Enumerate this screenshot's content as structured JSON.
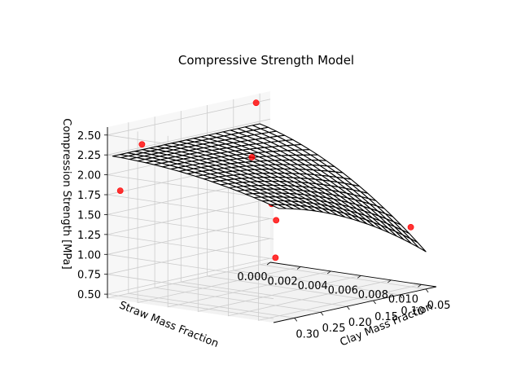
{
  "chart_data": {
    "type": "surface3d",
    "title": "Compressive Strength Model",
    "xlabel": "Clay Mass Fraction",
    "ylabel": "Straw Mass Fraction",
    "zlabel": "Compression Strength [MPa]",
    "xlim": [
      0.03,
      0.34
    ],
    "ylim": [
      0.0,
      0.011
    ],
    "zlim": [
      0.45,
      2.6
    ],
    "x_ticks": [
      "0.05",
      "0.10",
      "0.15",
      "0.20",
      "0.25",
      "0.30"
    ],
    "y_ticks": [
      "0.000",
      "0.002",
      "0.004",
      "0.006",
      "0.008",
      "0.010"
    ],
    "z_ticks": [
      "0.50",
      "0.75",
      "1.00",
      "1.25",
      "1.50",
      "1.75",
      "2.00",
      "2.25",
      "2.50"
    ],
    "grid": true,
    "surface_color": "#000000",
    "point_color": "#ff0000",
    "surface_x_range": [
      0.05,
      0.33
    ],
    "surface_y_range": [
      0.0,
      0.011
    ],
    "points": [
      {
        "x": 0.33,
        "y": 0.0005,
        "z": 1.8
      },
      {
        "x": 0.28,
        "y": 0.0002,
        "z": 2.3
      },
      {
        "x": 0.08,
        "y": 0.0008,
        "z": 2.55
      },
      {
        "x": 0.05,
        "y": 0.01,
        "z": 1.2
      },
      {
        "x": 0.12,
        "y": 0.007,
        "z": 1.45
      },
      {
        "x": 0.15,
        "y": 0.0055,
        "z": 1.9
      },
      {
        "x": 0.2,
        "y": 0.006,
        "z": 1.6
      },
      {
        "x": 0.22,
        "y": 0.007,
        "z": 1.45
      },
      {
        "x": 0.25,
        "y": 0.008,
        "z": 1.05
      },
      {
        "x": 0.18,
        "y": 0.004,
        "z": 2.1
      }
    ]
  }
}
